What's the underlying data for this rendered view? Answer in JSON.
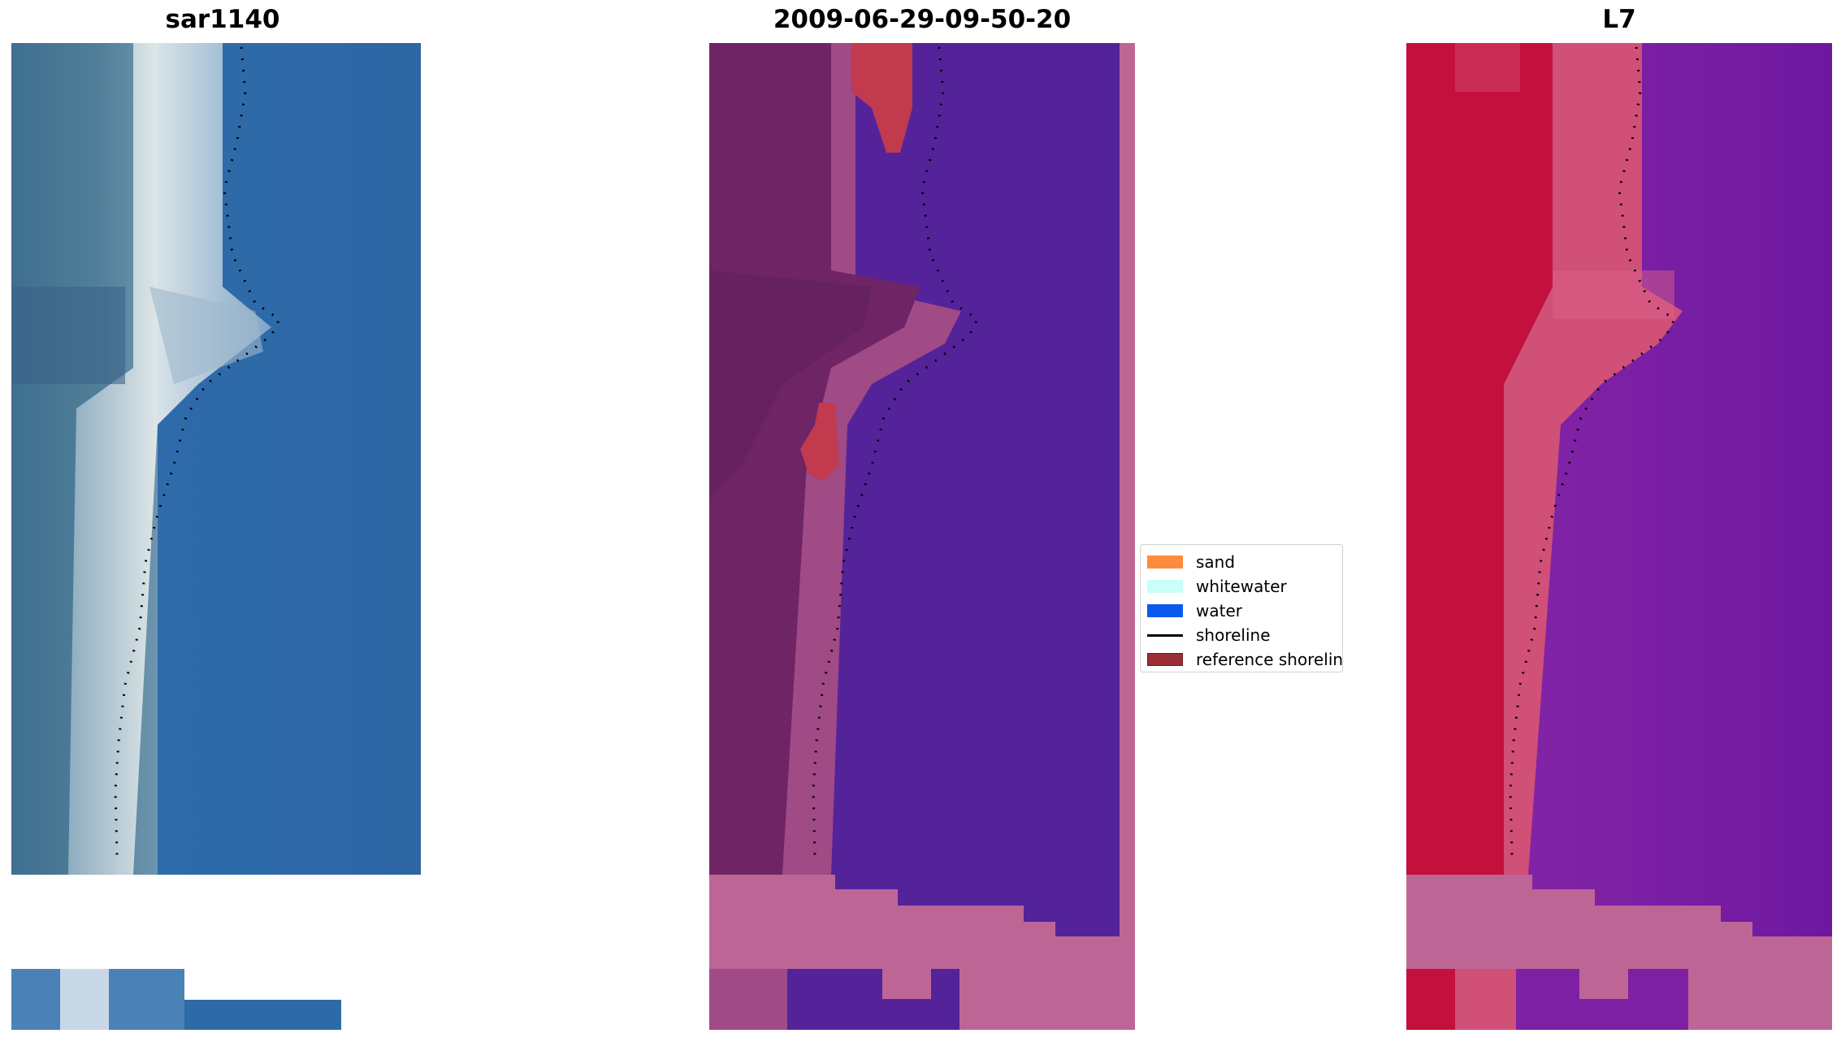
{
  "panels": [
    {
      "id": "rgb",
      "title": "sar1140"
    },
    {
      "id": "classified",
      "title": "2009-06-29-09-50-20"
    },
    {
      "id": "index",
      "title": "L7"
    }
  ],
  "legend": {
    "items": [
      {
        "label": "sand",
        "color": "#ff8c3c"
      },
      {
        "label": "whitewater",
        "color": "#c8fff8"
      },
      {
        "label": "water",
        "color": "#0a5af0"
      },
      {
        "label": "shoreline",
        "color": "#000000"
      },
      {
        "label": "reference shoreline buffer",
        "color": "#9b2d35"
      }
    ]
  },
  "colors": {
    "rgb_water": "#2e68a8",
    "rgb_land": "#3f6f8f",
    "rgb_whitewater": "#f0f4f0",
    "class_water": "#54239a",
    "class_land": "#6f2466",
    "class_buffer_fill": "#bd6696",
    "class_mid": "#a04a86",
    "class_red": "#c13a4e",
    "index_land": "#c4103c",
    "index_water": "#7a1ca0",
    "index_mid": "#d05078",
    "shoreline": "#000000"
  }
}
